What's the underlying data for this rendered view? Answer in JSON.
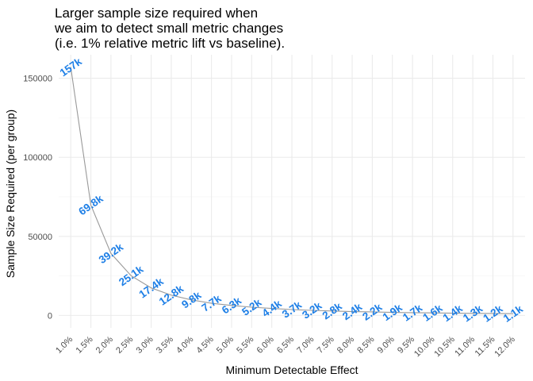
{
  "chart_data": {
    "type": "line",
    "title": [
      "Larger sample size required when",
      "we aim to detect small metric changes",
      "(i.e. 1% relative metric lift vs baseline)."
    ],
    "xlabel": "Minimum Detectable Effect",
    "ylabel": "Sample Size Required (per group)",
    "categories": [
      "1.0%",
      "1.5%",
      "2.0%",
      "2.5%",
      "3.0%",
      "3.5%",
      "4.0%",
      "4.5%",
      "5.0%",
      "5.5%",
      "6.0%",
      "6.5%",
      "7.0%",
      "7.5%",
      "8.0%",
      "8.5%",
      "9.0%",
      "9.5%",
      "10.0%",
      "10.5%",
      "11.0%",
      "11.5%",
      "12.0%"
    ],
    "values": [
      157000,
      69800,
      39200,
      25100,
      17400,
      12800,
      9800,
      7700,
      6300,
      5200,
      4400,
      3700,
      3200,
      2800,
      2400,
      2200,
      1900,
      1700,
      1600,
      1400,
      1300,
      1200,
      1100
    ],
    "data_labels": [
      "157k",
      "69.8k",
      "39.2k",
      "25.1k",
      "17.4k",
      "12.8k",
      "9.8k",
      "7.7k",
      "6.3k",
      "5.2k",
      "4.4k",
      "3.7k",
      "3.2k",
      "2.8k",
      "2.4k",
      "2.2k",
      "1.9k",
      "1.7k",
      "1.6k",
      "1.4k",
      "1.3k",
      "1.2k",
      "1.1k"
    ],
    "y_ticks": [
      0,
      50000,
      100000,
      150000
    ],
    "y_tick_labels": [
      "0",
      "50000",
      "100000",
      "150000"
    ],
    "ylim": [
      -7850,
      164850
    ],
    "grid": true,
    "legend": "none",
    "colors": {
      "line": "#999999",
      "label": "#1e7fe6",
      "grid": "#ebebeb",
      "grid_minor": "#f5f5f5",
      "text": "#000000",
      "tick_text": "#4d4d4d"
    }
  }
}
